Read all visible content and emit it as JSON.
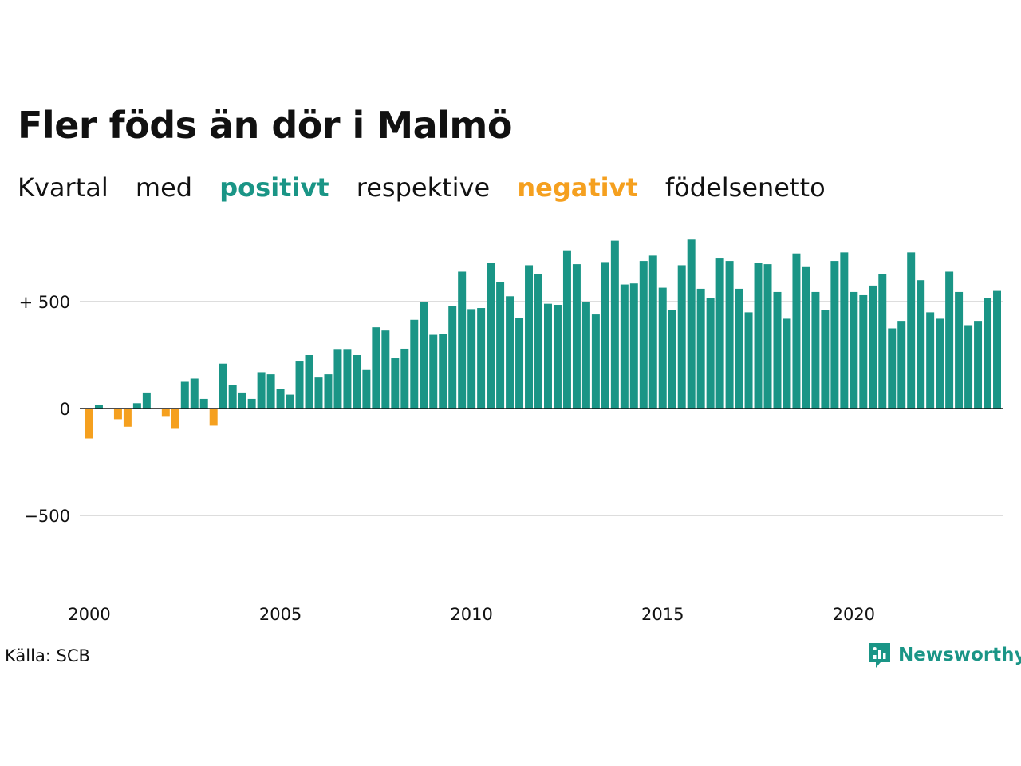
{
  "title": "Fler föds än dör i Malmö",
  "subtitle": {
    "part1": "Kvartal",
    "part2": "med",
    "positive": "positivt",
    "part3": "respektive",
    "negative": "negativt",
    "part4": "födelsenetto"
  },
  "colors": {
    "positive": "#1a9586",
    "negative": "#f5a01f",
    "grid": "#dddddd",
    "axis": "#111111"
  },
  "source": "Källa: SCB",
  "brand": {
    "name": "Newsworthy",
    "icon": "bar-chart-speech-icon"
  },
  "chart_data": {
    "type": "bar",
    "x_start": "2000 Q1",
    "frequency": "quarterly",
    "x_ticks": [
      "2000",
      "2005",
      "2010",
      "2015",
      "2020"
    ],
    "y_ticks": [
      {
        "value": 500,
        "label": "+ 500"
      },
      {
        "value": 0,
        "label": "0"
      },
      {
        "value": -500,
        "label": "−500"
      }
    ],
    "ylim": [
      -800,
      820
    ],
    "grid": true,
    "values": [
      -140,
      18,
      0,
      -50,
      -85,
      25,
      75,
      0,
      -35,
      -95,
      125,
      140,
      45,
      -80,
      210,
      110,
      75,
      45,
      170,
      160,
      90,
      65,
      220,
      250,
      145,
      160,
      275,
      275,
      250,
      180,
      380,
      365,
      235,
      280,
      415,
      500,
      345,
      350,
      480,
      640,
      465,
      470,
      680,
      590,
      525,
      425,
      670,
      630,
      490,
      485,
      740,
      675,
      500,
      440,
      685,
      785,
      580,
      585,
      690,
      715,
      565,
      460,
      670,
      790,
      560,
      515,
      705,
      690,
      560,
      450,
      680,
      675,
      545,
      420,
      725,
      665,
      545,
      460,
      690,
      730,
      545,
      530,
      575,
      630,
      375,
      410,
      730,
      600,
      450,
      420,
      640,
      545,
      390,
      410,
      515,
      550
    ]
  }
}
